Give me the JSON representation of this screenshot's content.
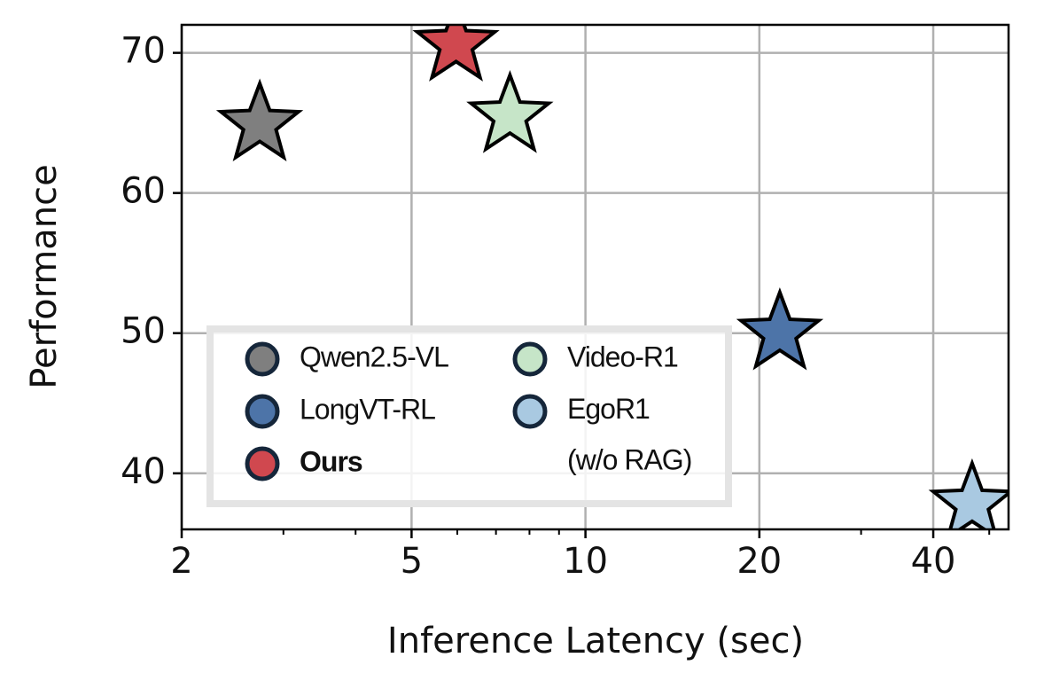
{
  "chart_data": {
    "type": "scatter",
    "xlabel": "Inference Latency (sec)",
    "ylabel": "Performance",
    "xscale": "log",
    "xlim": [
      2,
      54
    ],
    "ylim": [
      36,
      72
    ],
    "xticks": [
      2,
      5,
      10,
      20,
      40
    ],
    "xminorticks": [
      3,
      4,
      6,
      7,
      8,
      9,
      30,
      50
    ],
    "yticks": [
      40,
      50,
      60,
      70
    ],
    "grid": true,
    "marker": "star",
    "legend_ncol": 2,
    "series": [
      {
        "name": "Qwen2.5-VL",
        "color": "#7f7f7f",
        "x": [
          2.73
        ],
        "values": [
          64.9
        ]
      },
      {
        "name": "LongVT-RL",
        "color": "#4d74a8",
        "x": [
          21.7
        ],
        "values": [
          50.0
        ]
      },
      {
        "name": "Ours",
        "color": "#d0484f",
        "x": [
          5.97
        ],
        "values": [
          70.6
        ],
        "highlight": true
      },
      {
        "name": "Video-R1",
        "color": "#c6e5c8",
        "x": [
          7.4
        ],
        "values": [
          65.5
        ]
      },
      {
        "name": "EgoR1\n(w/o RAG)",
        "color": "#a9c9e1",
        "x": [
          46.7
        ],
        "values": [
          37.8
        ]
      }
    ]
  }
}
